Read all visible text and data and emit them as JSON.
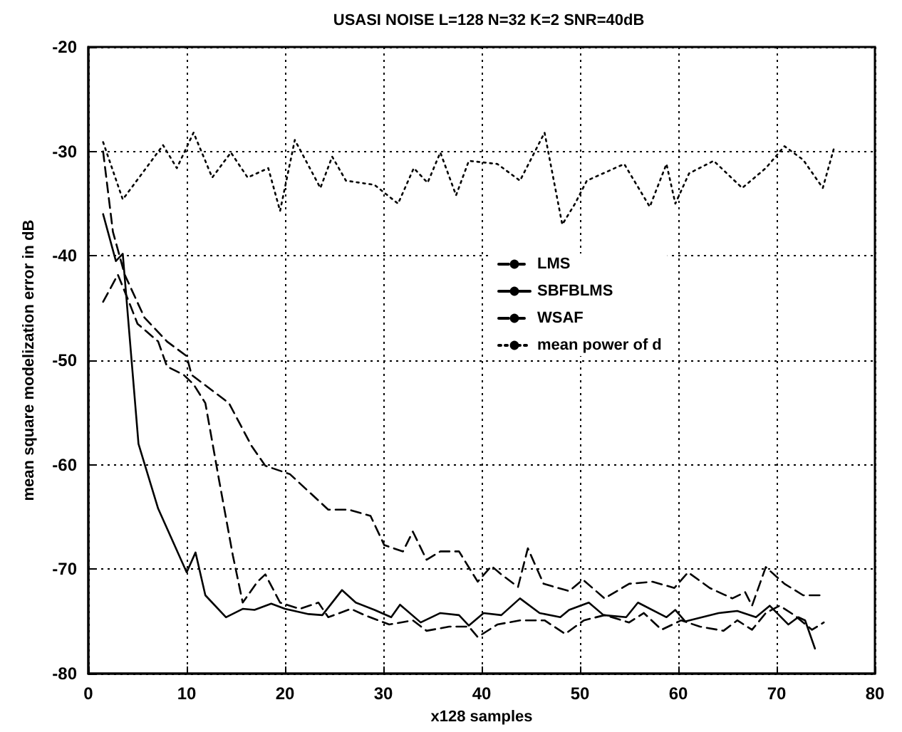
{
  "chart_data": {
    "type": "line",
    "title": "USASI NOISE L=128 N=32 K=2 SNR=40dB",
    "xlabel": "x128 samples",
    "ylabel": "mean square modelization error in dB",
    "xlim": [
      0,
      80
    ],
    "xticks": [
      0,
      10,
      20,
      30,
      40,
      50,
      60,
      70,
      80
    ],
    "ylim": [
      -80,
      -20
    ],
    "yticks": [
      -80,
      -70,
      -60,
      -50,
      -40,
      -30,
      -20
    ],
    "grid": true,
    "legend": "right",
    "marker": "none",
    "series": [
      {
        "name": "LMS",
        "color": "#000000",
        "line_style": "dashed",
        "x": [
          1.5,
          2.5,
          3.7,
          5.7,
          8,
          10,
          10.5,
          14.3,
          16.6,
          18,
          20.5,
          24.4,
          26.5,
          28.7,
          30.1,
          32,
          33,
          34.4,
          35.8,
          37.7,
          39.6,
          41,
          42,
          43.7,
          44.7,
          46.3,
          48.9,
          50.3,
          52.5,
          55,
          57.4,
          59.6,
          61,
          63.2,
          65.5,
          66.8,
          67.5,
          68.9,
          70.8,
          72.7,
          74.4
        ],
        "values": [
          -30,
          -37.7,
          -41.8,
          -45.9,
          -48.2,
          -49.6,
          -51.4,
          -54.1,
          -58.2,
          -60.1,
          -60.9,
          -64.3,
          -64.3,
          -64.9,
          -67.7,
          -68.3,
          -66.4,
          -69.1,
          -68.3,
          -68.3,
          -71.2,
          -69.7,
          -70.5,
          -71.7,
          -68,
          -71.4,
          -72.1,
          -71,
          -72.8,
          -71.4,
          -71.2,
          -71.8,
          -70.3,
          -71.8,
          -72.8,
          -72.2,
          -73.5,
          -69.8,
          -71.4,
          -72.5,
          -72.5
        ]
      },
      {
        "name": "SBFBLMS",
        "color": "#000000",
        "line_style": "solid",
        "x": [
          1.5,
          2.8,
          3.5,
          5.1,
          7.1,
          10,
          10.9,
          11.9,
          14,
          15.7,
          16.9,
          18.6,
          20,
          22.4,
          23.8,
          25.8,
          27.2,
          29.1,
          30.8,
          31.7,
          33.8,
          35.8,
          37.7,
          38.7,
          40.2,
          42,
          43.9,
          45.9,
          48,
          48.9,
          50.9,
          52.4,
          54.7,
          55.9,
          58.8,
          59.7,
          60.7,
          64.1,
          66,
          67.9,
          69.3,
          71.2,
          72.2,
          72.9,
          73.9
        ],
        "values": [
          -36,
          -40.5,
          -39.8,
          -58,
          -64.2,
          -70.3,
          -68.4,
          -72.5,
          -74.6,
          -73.8,
          -73.9,
          -73.3,
          -73.8,
          -74.3,
          -74.4,
          -72,
          -73.2,
          -73.9,
          -74.6,
          -73.4,
          -75.1,
          -74.2,
          -74.4,
          -75.4,
          -74.2,
          -74.4,
          -72.8,
          -74.2,
          -74.6,
          -73.9,
          -73.2,
          -74.4,
          -74.6,
          -73.2,
          -74.6,
          -73.9,
          -75,
          -74.2,
          -74,
          -74.6,
          -73.5,
          -75.3,
          -74.6,
          -74.9,
          -77.6
        ]
      },
      {
        "name": "WSAF",
        "color": "#000000",
        "line_style": "dashed",
        "x": [
          1.5,
          3,
          4,
          5,
          7.1,
          8,
          9.7,
          10.7,
          11.9,
          13.3,
          14.7,
          15.7,
          17.2,
          18,
          19.5,
          21.5,
          23.4,
          24.4,
          26.7,
          28.1,
          30.6,
          33,
          34.4,
          36.7,
          38.7,
          39.6,
          41.6,
          43.9,
          46.4,
          48.5,
          50.4,
          52.5,
          55,
          56.5,
          58.3,
          60.3,
          62.2,
          64.6,
          66,
          67.5,
          68.9,
          70.3,
          71.8,
          73.6,
          74.8
        ],
        "values": [
          -44.4,
          -41.8,
          -44.1,
          -46.5,
          -48.2,
          -50.6,
          -51.4,
          -52.3,
          -54.1,
          -61.5,
          -68.7,
          -73.2,
          -71.2,
          -70.5,
          -73.2,
          -73.8,
          -73.2,
          -74.6,
          -73.8,
          -74.4,
          -75.3,
          -74.9,
          -75.9,
          -75.5,
          -75.5,
          -76.5,
          -75.3,
          -74.9,
          -74.9,
          -76.2,
          -74.9,
          -74.4,
          -75.1,
          -74.2,
          -75.8,
          -74.9,
          -75.5,
          -75.9,
          -74.9,
          -75.8,
          -74.2,
          -73.5,
          -74.4,
          -75.8,
          -75.1
        ]
      },
      {
        "name": "mean power of d",
        "color": "#000000",
        "line_style": "dotted",
        "x": [
          1.5,
          3.5,
          7.6,
          9,
          10.7,
          12.6,
          14.5,
          16.2,
          18.3,
          19.5,
          21,
          23.6,
          24.8,
          26.2,
          29.1,
          31.5,
          33.1,
          34.5,
          35.8,
          37.4,
          38.7,
          41.6,
          43.9,
          46.4,
          48.2,
          49.5,
          50.7,
          54.5,
          57.1,
          58.8,
          59.7,
          61.1,
          63.6,
          66.5,
          68.9,
          70.8,
          72.7,
          74.7,
          75.8
        ],
        "values": [
          -29.1,
          -34.6,
          -29.4,
          -31.6,
          -28.2,
          -32.5,
          -30.1,
          -32.5,
          -31.6,
          -35.7,
          -28.9,
          -33.5,
          -30.5,
          -32.8,
          -33.2,
          -35,
          -31.6,
          -33,
          -30.1,
          -34.2,
          -30.9,
          -31.2,
          -32.8,
          -28.2,
          -37,
          -35,
          -32.8,
          -31.2,
          -35.3,
          -31.2,
          -35,
          -32.1,
          -30.9,
          -33.5,
          -31.6,
          -29.5,
          -30.8,
          -33.5,
          -29.8
        ]
      }
    ]
  }
}
